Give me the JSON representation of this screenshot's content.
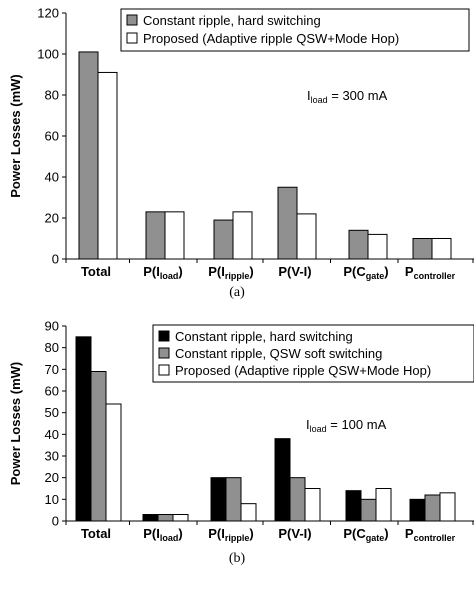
{
  "colors": {
    "black": "#000000",
    "gray": "#909090",
    "white": "#ffffff",
    "axis": "#000000"
  },
  "chart_data": [
    {
      "type": "bar",
      "caption": "(a)",
      "ylabel": "Power Losses (mW)",
      "ylim": [
        0,
        120
      ],
      "yticks": [
        "0",
        "20",
        "40",
        "60",
        "80",
        "100",
        "120"
      ],
      "categories": [
        "Total",
        "P(I_load)",
        "P(I_ripple)",
        "P(V-I)",
        "P(C_gate)",
        "P_controller"
      ],
      "annotation": {
        "main": "I",
        "sub": "load",
        "rest": " = 300 mA"
      },
      "legend_placement": "top-right",
      "series": [
        {
          "name": "Constant ripple, hard switching",
          "color": "gray",
          "values": [
            101,
            23,
            19,
            35,
            14,
            10
          ]
        },
        {
          "name": "Proposed (Adaptive ripple QSW+Mode Hop)",
          "color": "white",
          "values": [
            91,
            23,
            23,
            22,
            12,
            10
          ]
        }
      ]
    },
    {
      "type": "bar",
      "caption": "(b)",
      "ylabel": "Power Losses (mW)",
      "ylim": [
        0,
        90
      ],
      "yticks": [
        "0",
        "10",
        "20",
        "30",
        "40",
        "50",
        "60",
        "70",
        "80",
        "90"
      ],
      "categories": [
        "Total",
        "P(I_load)",
        "P(I_ripple)",
        "P(V-I)",
        "P(C_gate)",
        "P_controller"
      ],
      "annotation": {
        "main": "I",
        "sub": "load",
        "rest": " = 100 mA"
      },
      "legend_placement": "top-right",
      "series": [
        {
          "name": "Constant ripple, hard switching",
          "color": "black",
          "values": [
            85,
            3,
            20,
            38,
            14,
            10
          ]
        },
        {
          "name": "Constant ripple, QSW soft switching",
          "color": "gray",
          "values": [
            69,
            3,
            20,
            20,
            10,
            12
          ]
        },
        {
          "name": "Proposed (Adaptive ripple QSW+Mode Hop)",
          "color": "white",
          "values": [
            54,
            3,
            8,
            15,
            15,
            13
          ]
        }
      ]
    }
  ]
}
